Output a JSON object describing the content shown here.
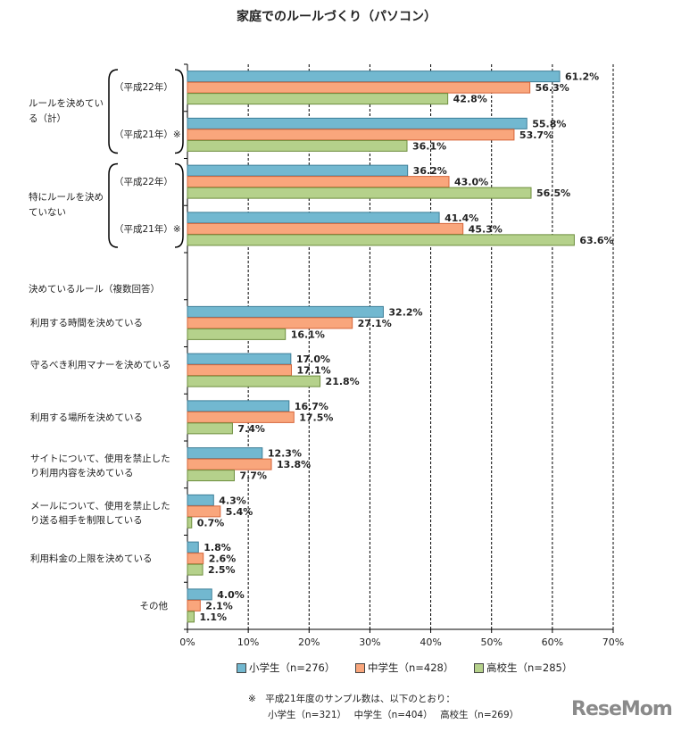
{
  "chart_data": {
    "type": "bar",
    "orientation": "horizontal",
    "title": "家庭でのルールづくり（パソコン）",
    "categories": [
      "（平成22年）",
      "（平成21年）※",
      "（平成22年）",
      "（平成21年）※",
      "",
      "利用する時間を決めている",
      "守るべき利用マナーを決めている",
      "利用する場所を決めている",
      "サイトについて、使用を禁止したり利用内容を決めている",
      "メールについて、使用を禁止したり送る相手を制限している",
      "利用料金の上限を決めている",
      "その他"
    ],
    "group_labels": [
      {
        "label": "ルールを決めている（計）",
        "categories": [
          0,
          1
        ]
      },
      {
        "label": "特にルールを決めていない",
        "categories": [
          2,
          3
        ]
      }
    ],
    "section_label": "決めているルール（複数回答）",
    "series": [
      {
        "name": "小学生（n=276）",
        "color": "#72b8d0",
        "border": "#3e7f98",
        "values": [
          61.2,
          55.8,
          36.2,
          41.4,
          null,
          32.2,
          17.0,
          16.7,
          12.3,
          4.3,
          1.8,
          4.0
        ]
      },
      {
        "name": "中学生（n=428）",
        "color": "#f9a67c",
        "border": "#d6653a",
        "values": [
          56.3,
          53.7,
          43.0,
          45.3,
          null,
          27.1,
          17.1,
          17.5,
          13.8,
          5.4,
          2.6,
          2.1
        ]
      },
      {
        "name": "高校生（n=285）",
        "color": "#b5d18b",
        "border": "#6e8e3e",
        "values": [
          42.8,
          36.1,
          56.5,
          63.6,
          null,
          16.1,
          21.8,
          7.4,
          7.7,
          0.7,
          2.5,
          1.1
        ]
      }
    ],
    "xlim": [
      0,
      70
    ],
    "xticks": [
      "0%",
      "10%",
      "20%",
      "30%",
      "40%",
      "50%",
      "60%",
      "70%"
    ],
    "value_suffix": "%",
    "grid": true,
    "legend": "bottom"
  },
  "footnote": {
    "line1": "※　平成21年度のサンプル数は、以下のとおり：",
    "line2": "小学生（n=321）　 中学生（n=404）　 高校生（n=269）"
  },
  "logo": "ReseMom"
}
